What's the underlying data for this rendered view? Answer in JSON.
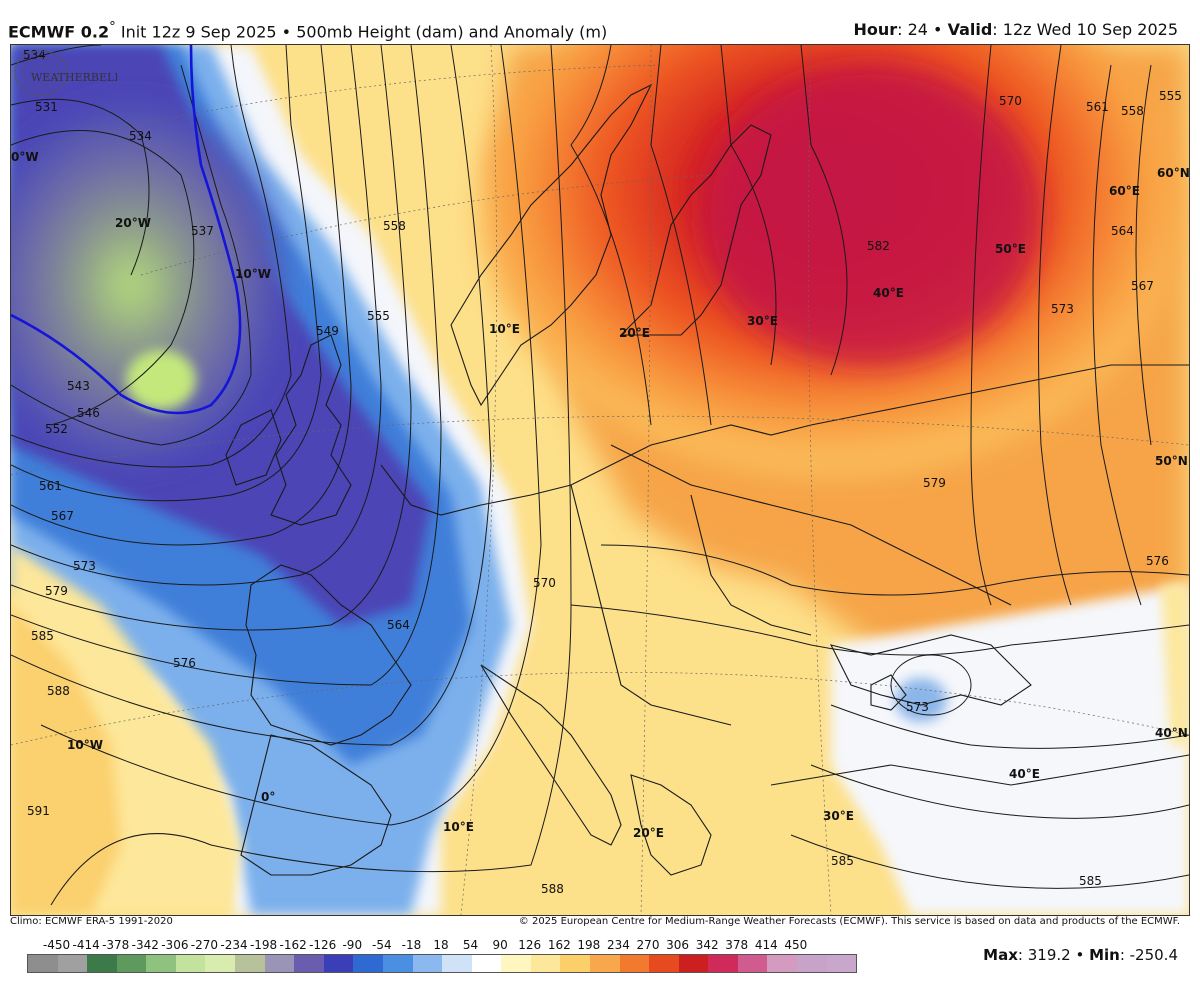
{
  "header": {
    "model": "ECMWF 0.2",
    "degree": "°",
    "init": " Init 12z 9 Sep 2025",
    "bullet": " • ",
    "product": "500mb Height (dam) and Anomaly (m)",
    "hour_label": "Hour",
    "hour_value": ": 24",
    "valid_label": "Valid",
    "valid_value": ": 12z Wed 10 Sep 2025"
  },
  "map": {
    "contour_labels": [
      "534",
      "531",
      "534",
      "537",
      "549",
      "555",
      "558",
      "543",
      "546",
      "552",
      "561",
      "567",
      "573",
      "579",
      "585",
      "588",
      "591",
      "576",
      "564",
      "570",
      "582",
      "570",
      "561",
      "558",
      "555",
      "564",
      "567",
      "573",
      "579",
      "576",
      "573",
      "585",
      "588",
      "585"
    ],
    "grid_labels": [
      "0°W",
      "20°W",
      "10°W",
      "10°E",
      "20°E",
      "30°E",
      "40°E",
      "50°E",
      "60°E",
      "60°N",
      "50°N",
      "40°N",
      "40°E",
      "30°E",
      "20°E",
      "10°E",
      "0°",
      "10°W"
    ],
    "logo_text": "WEATHERBELL"
  },
  "footer": {
    "climo": "Climo: ECMWF ERA-5 1991-2020",
    "copyright": "© 2025 European Centre for Medium-Range Weather Forecasts (ECMWF). This service is based on data and products of the ECMWF."
  },
  "colorbar": {
    "ticks": [
      "-450",
      "-414",
      "-378",
      "-342",
      "-306",
      "-270",
      "-234",
      "-198",
      "-162",
      "-126",
      "-90",
      "-54",
      "-18",
      "18",
      "54",
      "90",
      "126",
      "162",
      "198",
      "234",
      "270",
      "306",
      "342",
      "378",
      "414",
      "450"
    ],
    "colors": [
      "#8e8e8e",
      "#a0a0a0",
      "#3d7a4a",
      "#5e9a5e",
      "#8fc27f",
      "#c2e29e",
      "#d8ecb0",
      "#b7c29b",
      "#9a94b6",
      "#6a5db0",
      "#3b3fb7",
      "#2f6ad2",
      "#4b8fe3",
      "#8ab8ef",
      "#cfe2f7",
      "#ffffff",
      "#fff6c0",
      "#fde79a",
      "#fbcf6a",
      "#f8a84a",
      "#f27a2e",
      "#e74a1f",
      "#cc2020",
      "#cf2a5a",
      "#cf5b8f",
      "#d59ac0",
      "#c7a3c9",
      "#c9a7cc"
    ],
    "max_label": "Max",
    "max_value": ": 319.2",
    "min_label": "Min",
    "min_value": ": -250.4",
    "sep": " • "
  }
}
